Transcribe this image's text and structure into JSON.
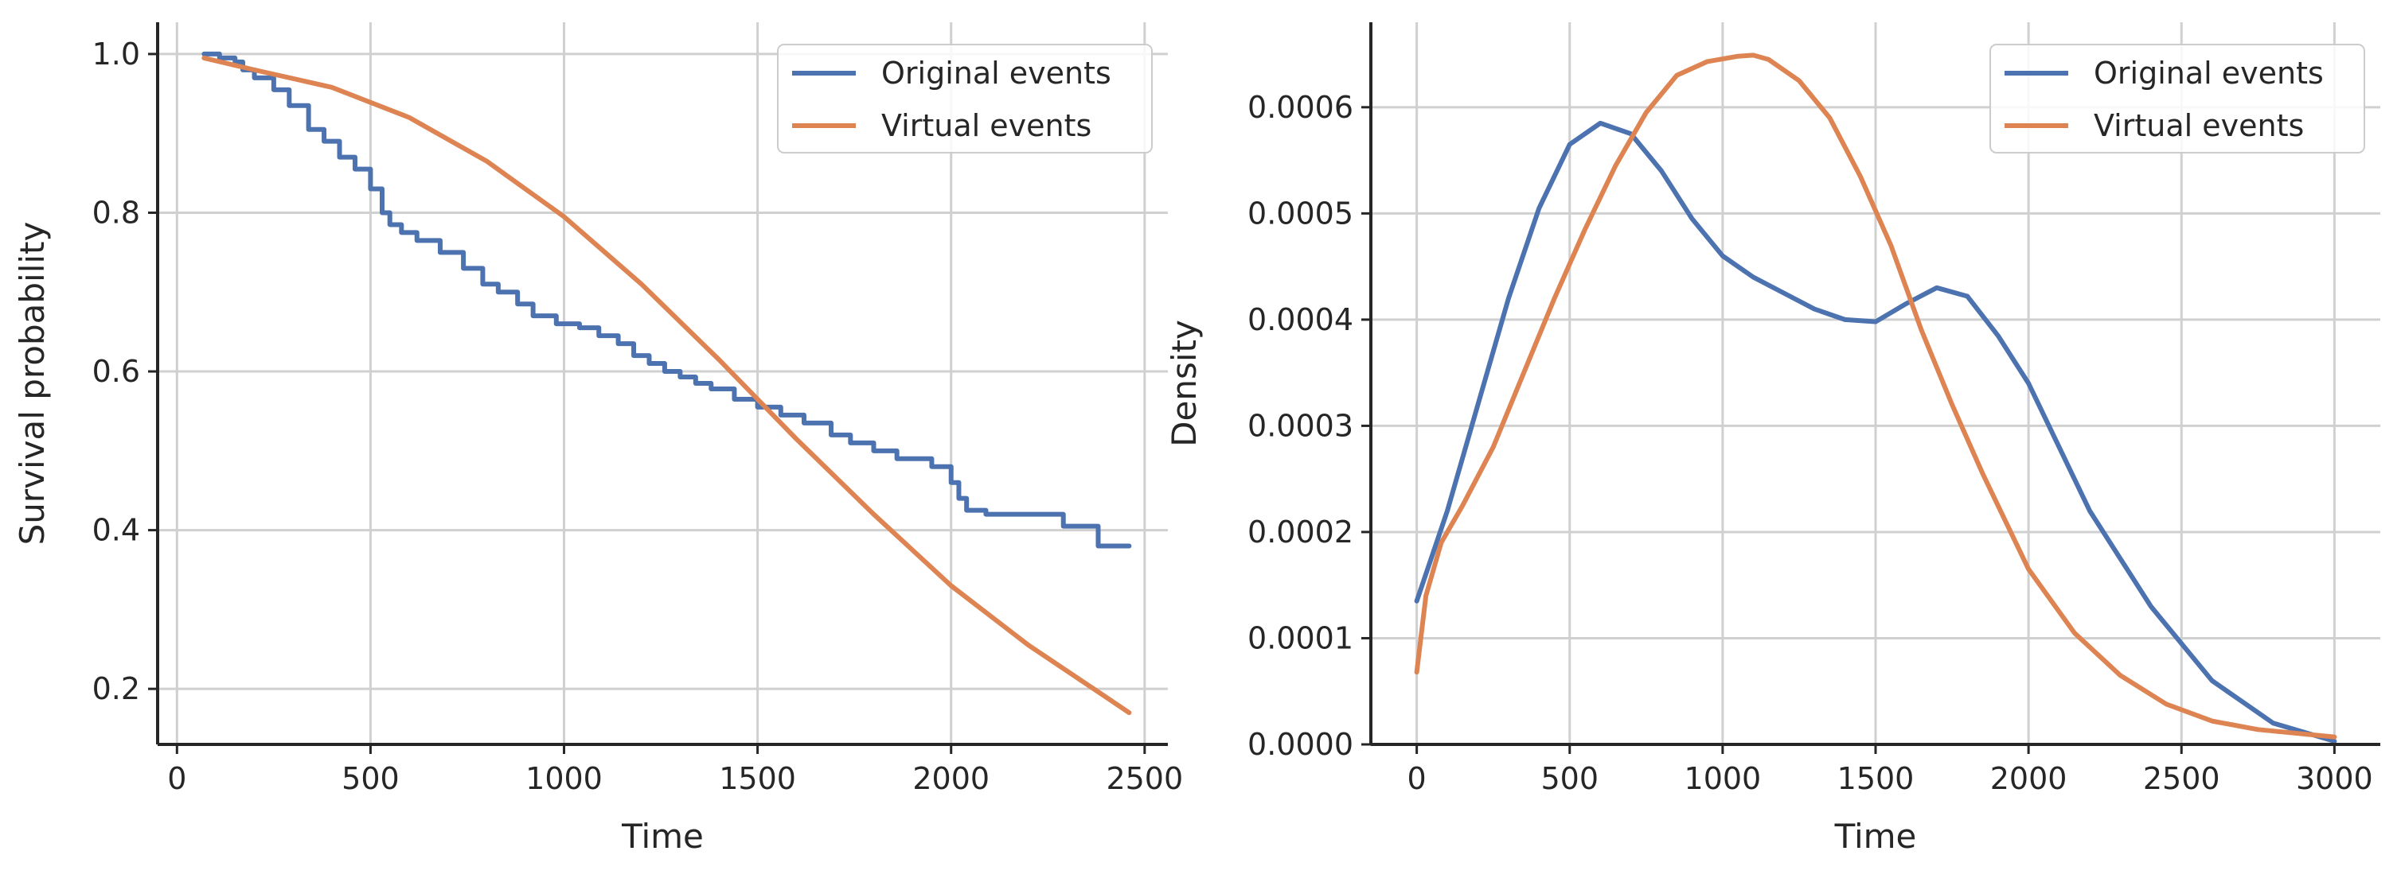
{
  "colors": {
    "original": "#4c72b0",
    "virtual": "#dd8452"
  },
  "chart_data": [
    {
      "type": "line",
      "title": "",
      "xlabel": "Time",
      "ylabel": "Survival probability",
      "xlim": [
        -50,
        2560
      ],
      "ylim": [
        0.13,
        1.04
      ],
      "xticks": [
        0,
        500,
        1000,
        1500,
        2000,
        2500
      ],
      "xtick_labels": [
        "0",
        "500",
        "1000",
        "1500",
        "2000",
        "2500"
      ],
      "yticks": [
        0.2,
        0.4,
        0.6,
        0.8,
        1.0
      ],
      "ytick_labels": [
        "0.2",
        "0.4",
        "0.6",
        "0.8",
        "1.0"
      ],
      "grid": true,
      "legend_position": "top-right",
      "series": [
        {
          "name": "Original events",
          "step": true,
          "x": [
            70,
            110,
            150,
            170,
            200,
            250,
            290,
            340,
            380,
            420,
            460,
            500,
            530,
            550,
            580,
            620,
            680,
            740,
            790,
            830,
            880,
            920,
            980,
            1040,
            1090,
            1140,
            1180,
            1220,
            1260,
            1300,
            1340,
            1380,
            1440,
            1500,
            1560,
            1620,
            1690,
            1740,
            1800,
            1860,
            1900,
            1950,
            2000,
            2020,
            2040,
            2090,
            2150,
            2230,
            2290,
            2330,
            2380,
            2460
          ],
          "y": [
            1.0,
            0.995,
            0.99,
            0.98,
            0.97,
            0.955,
            0.935,
            0.905,
            0.89,
            0.87,
            0.855,
            0.83,
            0.8,
            0.785,
            0.775,
            0.765,
            0.75,
            0.73,
            0.71,
            0.7,
            0.685,
            0.67,
            0.66,
            0.655,
            0.645,
            0.635,
            0.62,
            0.61,
            0.6,
            0.593,
            0.585,
            0.578,
            0.565,
            0.555,
            0.545,
            0.535,
            0.52,
            0.51,
            0.5,
            0.49,
            0.49,
            0.48,
            0.46,
            0.44,
            0.425,
            0.42,
            0.42,
            0.42,
            0.405,
            0.405,
            0.38,
            0.38
          ]
        },
        {
          "name": "Virtual events",
          "step": false,
          "x": [
            70,
            200,
            400,
            600,
            800,
            1000,
            1200,
            1400,
            1500,
            1600,
            1800,
            2000,
            2200,
            2460
          ],
          "y": [
            0.995,
            0.98,
            0.958,
            0.92,
            0.865,
            0.795,
            0.71,
            0.615,
            0.565,
            0.515,
            0.42,
            0.33,
            0.255,
            0.17
          ]
        }
      ]
    },
    {
      "type": "line",
      "title": "",
      "xlabel": "Time",
      "ylabel": "Density",
      "xlim": [
        -150,
        3150
      ],
      "ylim": [
        0,
        0.00068
      ],
      "xticks": [
        0,
        500,
        1000,
        1500,
        2000,
        2500,
        3000
      ],
      "xtick_labels": [
        "0",
        "500",
        "1000",
        "1500",
        "2000",
        "2500",
        "3000"
      ],
      "yticks": [
        0,
        0.0001,
        0.0002,
        0.0003,
        0.0004,
        0.0005,
        0.0006
      ],
      "ytick_labels": [
        "0.0000",
        "0.0001",
        "0.0002",
        "0.0003",
        "0.0004",
        "0.0005",
        "0.0006"
      ],
      "grid": true,
      "legend_position": "top-right",
      "series": [
        {
          "name": "Original events",
          "step": false,
          "x": [
            0,
            100,
            200,
            300,
            400,
            500,
            600,
            700,
            800,
            900,
            1000,
            1100,
            1200,
            1300,
            1400,
            1500,
            1600,
            1700,
            1800,
            1900,
            2000,
            2200,
            2400,
            2600,
            2800,
            3000
          ],
          "y": [
            0.000135,
            0.00022,
            0.00032,
            0.00042,
            0.000505,
            0.000565,
            0.000585,
            0.000575,
            0.00054,
            0.000495,
            0.00046,
            0.00044,
            0.000425,
            0.00041,
            0.0004,
            0.000398,
            0.000415,
            0.00043,
            0.000422,
            0.000385,
            0.00034,
            0.00022,
            0.00013,
            6e-05,
            2e-05,
            3e-06
          ]
        },
        {
          "name": "Virtual events",
          "step": false,
          "x": [
            0,
            30,
            80,
            150,
            250,
            350,
            450,
            550,
            650,
            750,
            850,
            950,
            1050,
            1100,
            1150,
            1250,
            1350,
            1450,
            1550,
            1650,
            1750,
            1850,
            2000,
            2150,
            2300,
            2450,
            2600,
            2750,
            3000
          ],
          "y": [
            6.8e-05,
            0.00014,
            0.00019,
            0.000225,
            0.00028,
            0.00035,
            0.00042,
            0.000485,
            0.000545,
            0.000595,
            0.00063,
            0.000643,
            0.000648,
            0.000649,
            0.000645,
            0.000625,
            0.00059,
            0.000535,
            0.00047,
            0.00039,
            0.00032,
            0.000255,
            0.000165,
            0.000105,
            6.5e-05,
            3.8e-05,
            2.2e-05,
            1.4e-05,
            7e-06
          ]
        }
      ]
    }
  ]
}
